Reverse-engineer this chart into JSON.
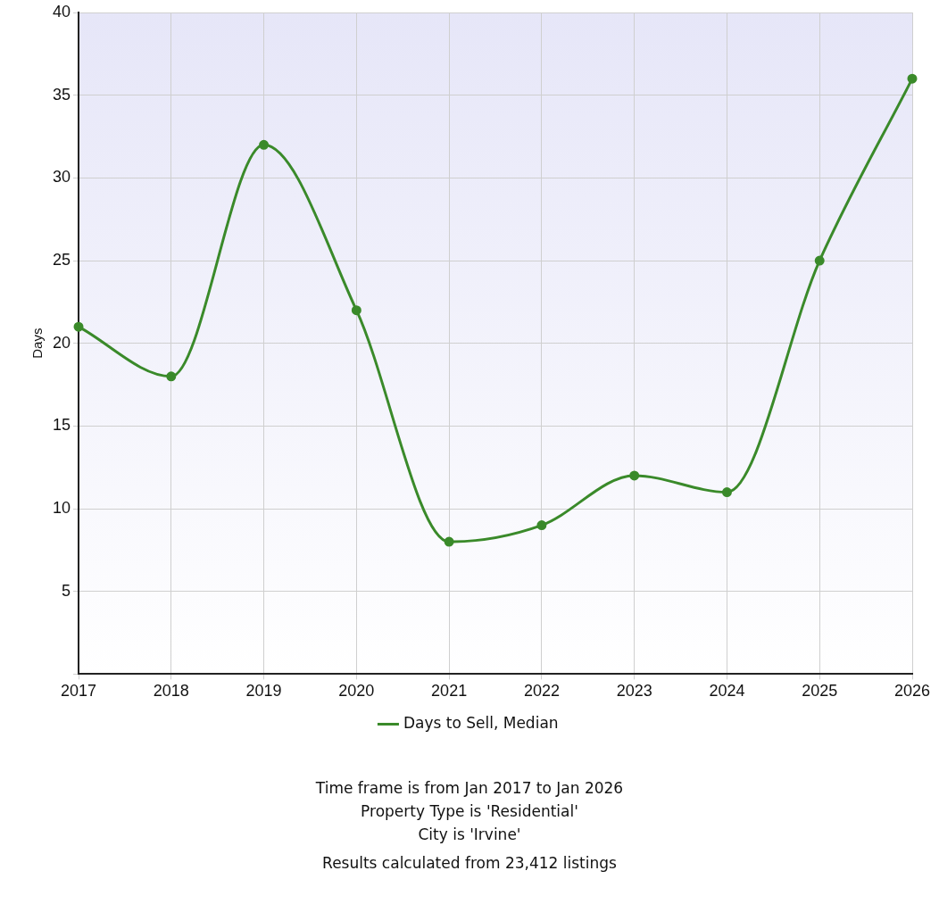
{
  "chart_data": {
    "type": "line",
    "ylabel": "Days",
    "categories": [
      "2017",
      "2018",
      "2019",
      "2020",
      "2021",
      "2022",
      "2023",
      "2024",
      "2025",
      "2026"
    ],
    "series": [
      {
        "name": "Days to Sell, Median",
        "color": "#3a8a2a",
        "values": [
          21,
          18,
          32,
          22,
          8,
          9,
          12,
          11,
          25,
          36
        ]
      }
    ],
    "ylim": [
      0,
      40
    ],
    "yticks": [
      {
        "value": 0,
        "label": null
      },
      5,
      10,
      15,
      20,
      25,
      30,
      35,
      40
    ],
    "grid": true,
    "legend": "bottom",
    "marker": "circle",
    "line_style": "solid",
    "annotations": [
      "Time frame is from Jan 2017 to Jan 2026",
      "Property Type is 'Residential'",
      "City is 'Irvine'",
      "Results calculated from 23,412 listings"
    ]
  }
}
